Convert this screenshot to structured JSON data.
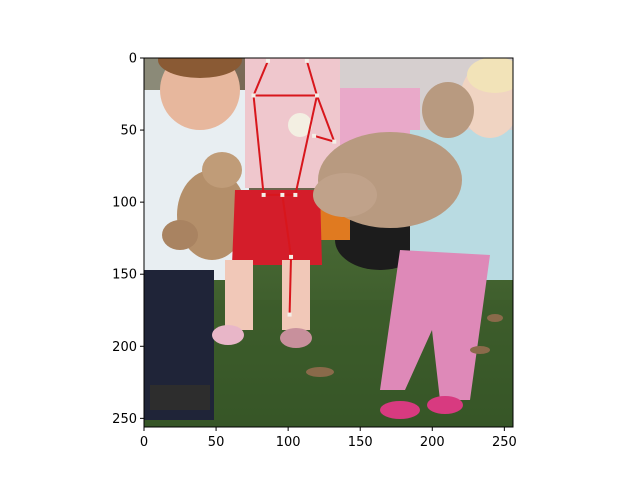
{
  "figure": {
    "image_description_icon": "photo-of-three-children-with-teddy-bears-on-grass",
    "axes": {
      "x_ticks": [
        "0",
        "50",
        "100",
        "150",
        "200",
        "250"
      ],
      "y_ticks": [
        "0",
        "50",
        "100",
        "150",
        "200",
        "250"
      ],
      "x_range": [
        0,
        256
      ],
      "y_range": [
        256,
        0
      ]
    },
    "overlay": {
      "type": "pose-skeleton",
      "line_color": "#d8161c",
      "keypoints": [
        {
          "name": "head-top-left",
          "x": 86,
          "y": 2
        },
        {
          "name": "head-top-right",
          "x": 113,
          "y": 2
        },
        {
          "name": "left-shoulder",
          "x": 76,
          "y": 26
        },
        {
          "name": "right-shoulder",
          "x": 120,
          "y": 26
        },
        {
          "name": "right-elbow",
          "x": 132,
          "y": 58
        },
        {
          "name": "right-wrist",
          "x": 118,
          "y": 54
        },
        {
          "name": "left-hip",
          "x": 83,
          "y": 95
        },
        {
          "name": "right-hip",
          "x": 105,
          "y": 95
        },
        {
          "name": "left-hip-inner",
          "x": 96,
          "y": 95
        },
        {
          "name": "knee",
          "x": 102,
          "y": 138
        },
        {
          "name": "ankle",
          "x": 101,
          "y": 178
        }
      ]
    },
    "colors": {
      "axis": "#000000",
      "background": "#ffffff"
    }
  }
}
